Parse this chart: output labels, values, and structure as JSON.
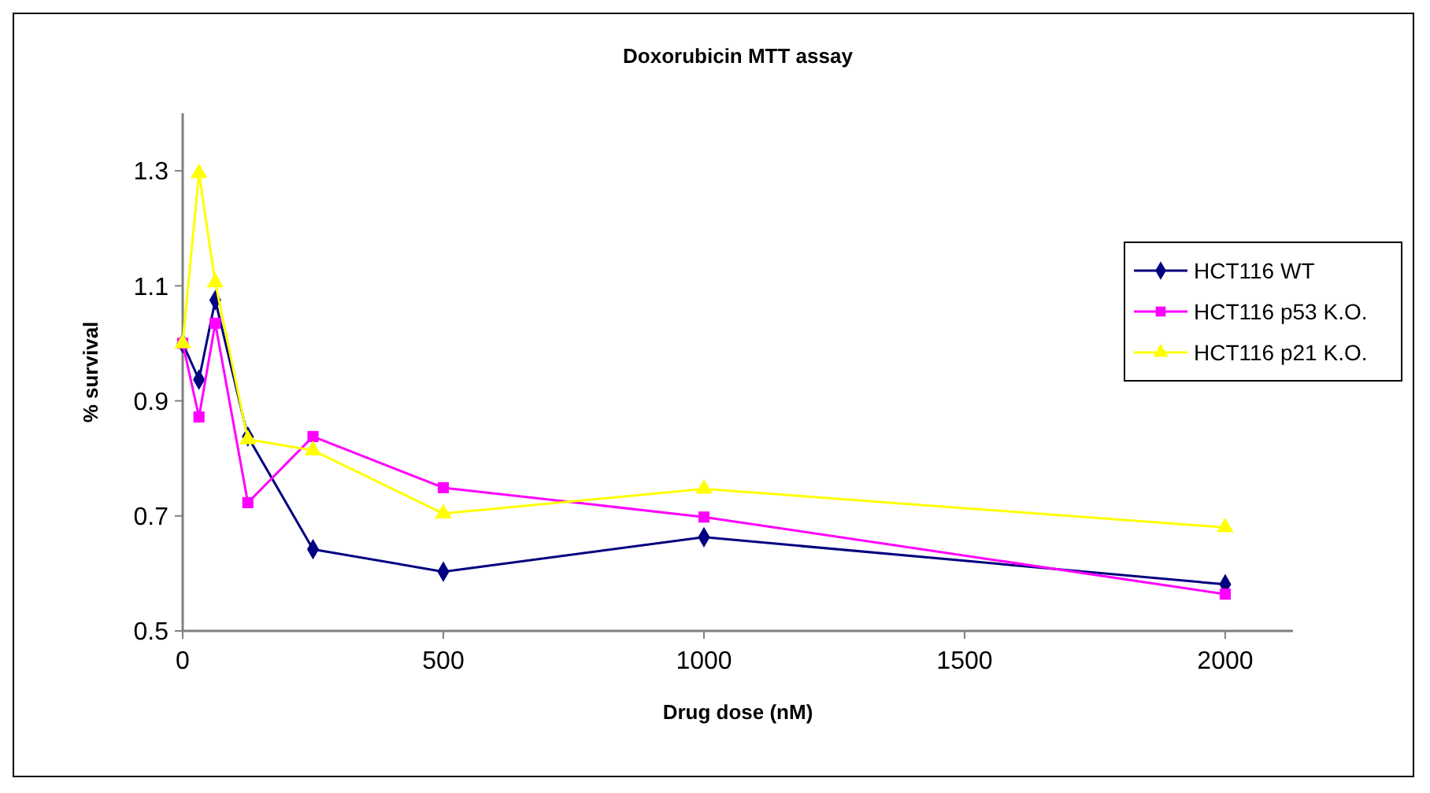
{
  "chart_data": {
    "type": "line",
    "title": "Doxorubicin MTT assay",
    "xlabel": "Drug dose (nM)",
    "ylabel": "% survival",
    "x": [
      0,
      31.25,
      62.5,
      125,
      250,
      500,
      1000,
      2000
    ],
    "series": [
      {
        "name": "HCT116 WT",
        "color": "#000080",
        "marker": "diamond",
        "values": [
          1.0,
          0.937,
          1.075,
          0.838,
          0.642,
          0.603,
          0.663,
          0.581
        ]
      },
      {
        "name": "HCT116 p53 K.O.",
        "color": "#ff00ff",
        "marker": "square",
        "values": [
          1.0,
          0.872,
          1.035,
          0.723,
          0.838,
          0.749,
          0.698,
          0.564
        ]
      },
      {
        "name": "HCT116 p21 K.O.",
        "color": "#ffff00",
        "marker": "triangle",
        "values": [
          1.0,
          1.296,
          1.106,
          0.833,
          0.814,
          0.704,
          0.747,
          0.68
        ]
      }
    ],
    "xlim": [
      0,
      2130
    ],
    "xticks": [
      0,
      500,
      1000,
      1500,
      2000
    ],
    "ylim": [
      0.5,
      1.4
    ],
    "yticks": [
      0.5,
      0.7,
      0.9,
      1.1,
      1.3
    ],
    "grid": false,
    "legend": "right"
  }
}
